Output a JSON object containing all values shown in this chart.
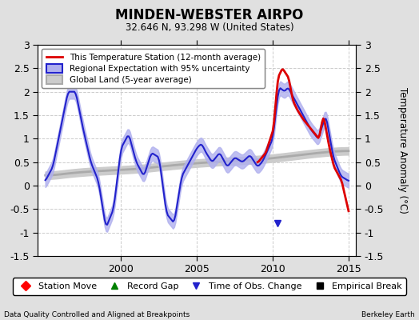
{
  "title": "MINDEN-WEBSTER AIRPO",
  "subtitle": "32.646 N, 93.298 W (United States)",
  "ylabel": "Temperature Anomaly (°C)",
  "footer_left": "Data Quality Controlled and Aligned at Breakpoints",
  "footer_right": "Berkeley Earth",
  "xlim": [
    1994.5,
    2015.5
  ],
  "ylim": [
    -1.5,
    3.0
  ],
  "yticks": [
    -1.5,
    -1.0,
    -0.5,
    0.0,
    0.5,
    1.0,
    1.5,
    2.0,
    2.5,
    3.0
  ],
  "xticks": [
    2000,
    2005,
    2010,
    2015
  ],
  "bg_color": "#e0e0e0",
  "plot_bg_color": "#ffffff",
  "grid_color": "#cccccc",
  "station_color": "#dd0000",
  "regional_color": "#2222cc",
  "regional_fill": "#b0b0ee",
  "global_color": "#aaaaaa",
  "global_fill": "#cccccc",
  "obs_change_x": 2010.3,
  "obs_change_y": -0.8,
  "legend_line1": "This Temperature Station (12-month average)",
  "legend_line2": "Regional Expectation with 95% uncertainty",
  "legend_line3": "Global Land (5-year average)",
  "marker_labels": [
    "Station Move",
    "Record Gap",
    "Time of Obs. Change",
    "Empirical Break"
  ],
  "marker_colors": [
    "red",
    "green",
    "#2222cc",
    "black"
  ],
  "marker_symbols": [
    "D",
    "^",
    "v",
    "s"
  ]
}
